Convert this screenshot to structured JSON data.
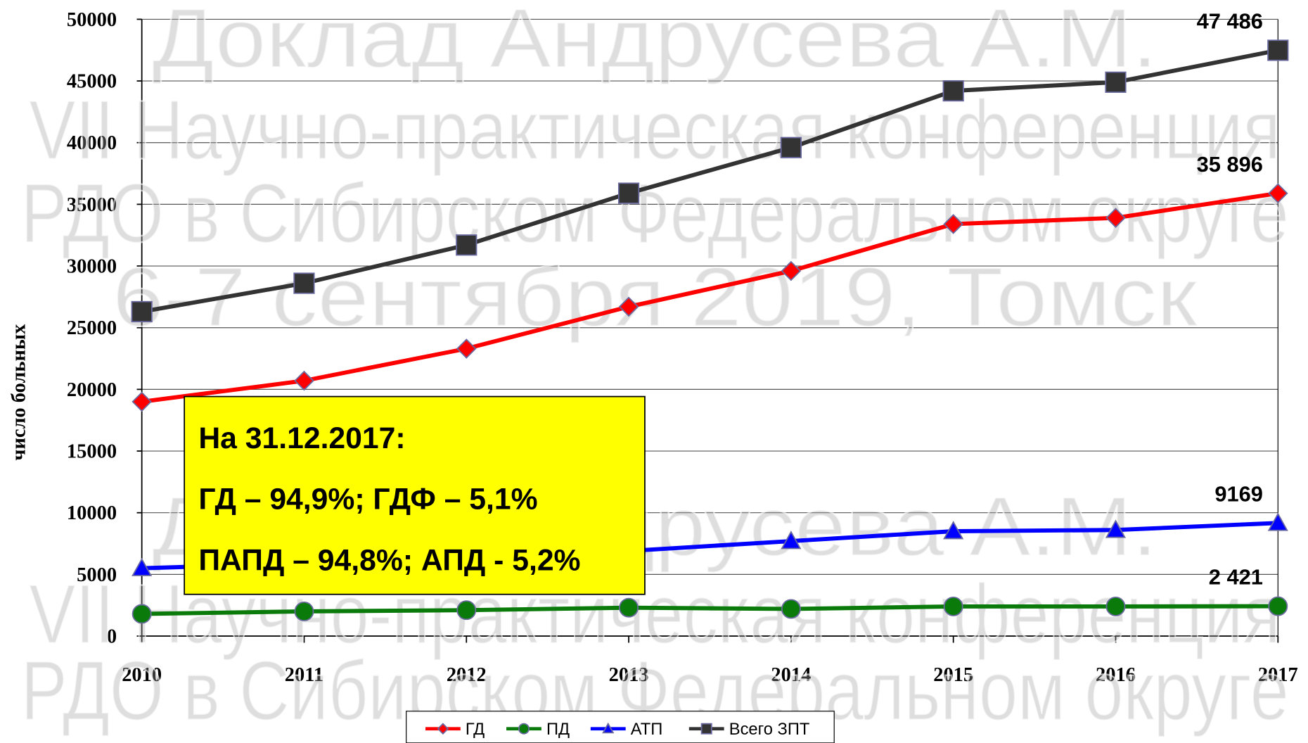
{
  "chart_data": {
    "type": "line",
    "y_label": "число больных",
    "categories": [
      "2010",
      "2011",
      "2012",
      "2013",
      "2014",
      "2015",
      "2016",
      "2017"
    ],
    "series": [
      {
        "name": "ГД",
        "color": "#ff0000",
        "marker": "diamond",
        "values": [
          19000,
          20700,
          23300,
          26700,
          29600,
          33400,
          33900,
          35896
        ],
        "value_labels": [
          null,
          null,
          null,
          null,
          null,
          null,
          null,
          "35 896"
        ]
      },
      {
        "name": "ПД",
        "color": "#0a7a0a",
        "marker": "circle",
        "values": [
          1800,
          2000,
          2100,
          2300,
          2200,
          2400,
          2400,
          2421
        ],
        "value_labels": [
          null,
          null,
          null,
          null,
          null,
          null,
          null,
          "2 421"
        ]
      },
      {
        "name": "АТП",
        "color": "#0000ff",
        "marker": "triangle",
        "values": [
          5500,
          5900,
          6300,
          6900,
          7700,
          8500,
          8600,
          9169
        ],
        "value_labels": [
          null,
          null,
          null,
          null,
          null,
          null,
          null,
          "9169"
        ]
      },
      {
        "name": "Всего ЗПТ",
        "color": "#333333",
        "marker": "square",
        "values": [
          26300,
          28600,
          31700,
          35900,
          39600,
          44200,
          44900,
          47486
        ],
        "value_labels": [
          null,
          null,
          null,
          null,
          null,
          null,
          null,
          "47 486"
        ]
      }
    ],
    "ylim": [
      0,
      50000
    ],
    "yticks": [
      0,
      5000,
      10000,
      15000,
      20000,
      25000,
      30000,
      35000,
      40000,
      45000,
      50000
    ],
    "grid": true,
    "legend": "bottom",
    "annotation": [
      "На 31.12.2017:",
      "ГД – 94,9%; ГДФ – 5,1%",
      "ПАПД – 94,8%; АПД - 5,2%"
    ],
    "watermark": [
      "Доклад Андрусева А.М.",
      "VII Научно-практическая конференция",
      "РДО в Сибирском Федеральном округе",
      "6-7 сентября 2019, Томск"
    ]
  }
}
